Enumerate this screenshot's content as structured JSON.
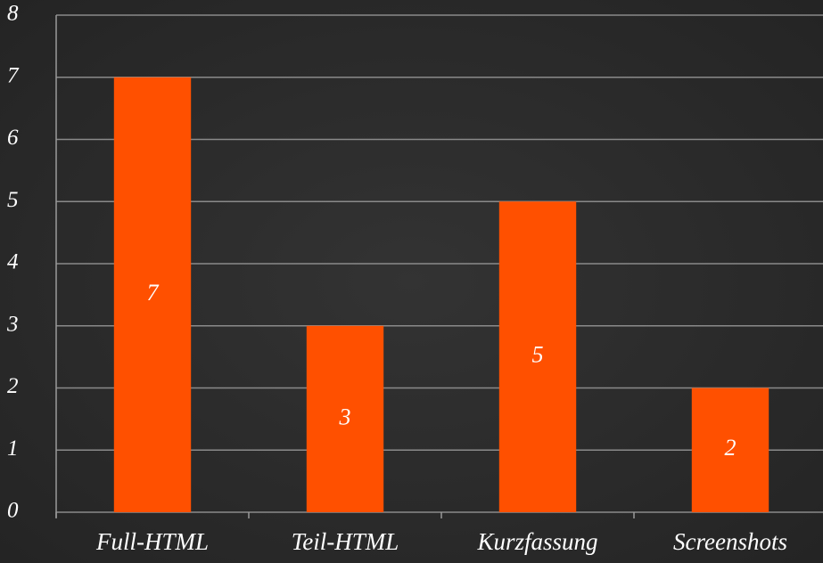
{
  "chart_data": {
    "type": "bar",
    "categories": [
      "Full-HTML",
      "Teil-HTML",
      "Kurzfassung",
      "Screenshots"
    ],
    "values": [
      7,
      3,
      5,
      2
    ],
    "color": "#ff5000",
    "ylim": [
      0,
      8
    ],
    "yticks": [
      0,
      1,
      2,
      3,
      4,
      5,
      6,
      7,
      8
    ],
    "grid": true
  }
}
